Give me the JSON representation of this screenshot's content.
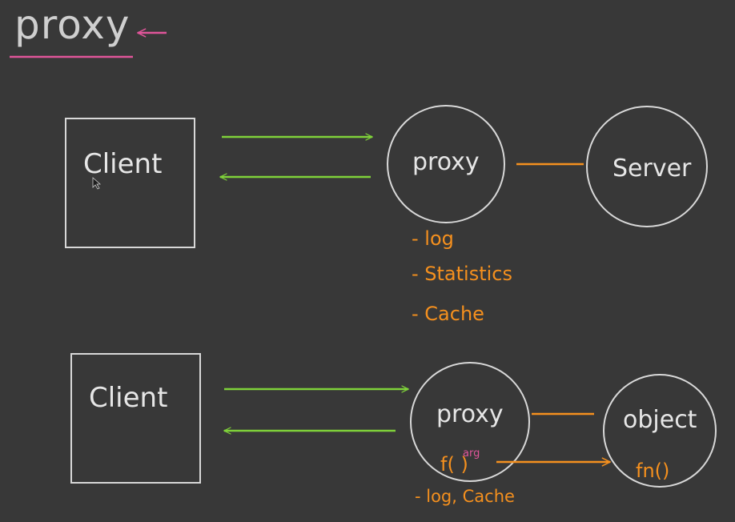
{
  "title": "proxy",
  "colors": {
    "background": "#383838",
    "shape_stroke": "#d8d8d8",
    "request_arrow": "#7fd23a",
    "link": "#f5901e",
    "title_underline": "#e0559a",
    "highlight": "#e0559a"
  },
  "diagram1": {
    "client_label": "Client",
    "proxy_label": "proxy",
    "server_label": "Server",
    "notes": [
      "- log",
      "- Statistics",
      "- Cache"
    ]
  },
  "diagram2": {
    "client_label": "Client",
    "proxy_label": "proxy",
    "object_label": "object",
    "proxy_call": "f( )",
    "proxy_call_arg": "arg",
    "object_call": "fn()",
    "note": "- log, Cache"
  }
}
